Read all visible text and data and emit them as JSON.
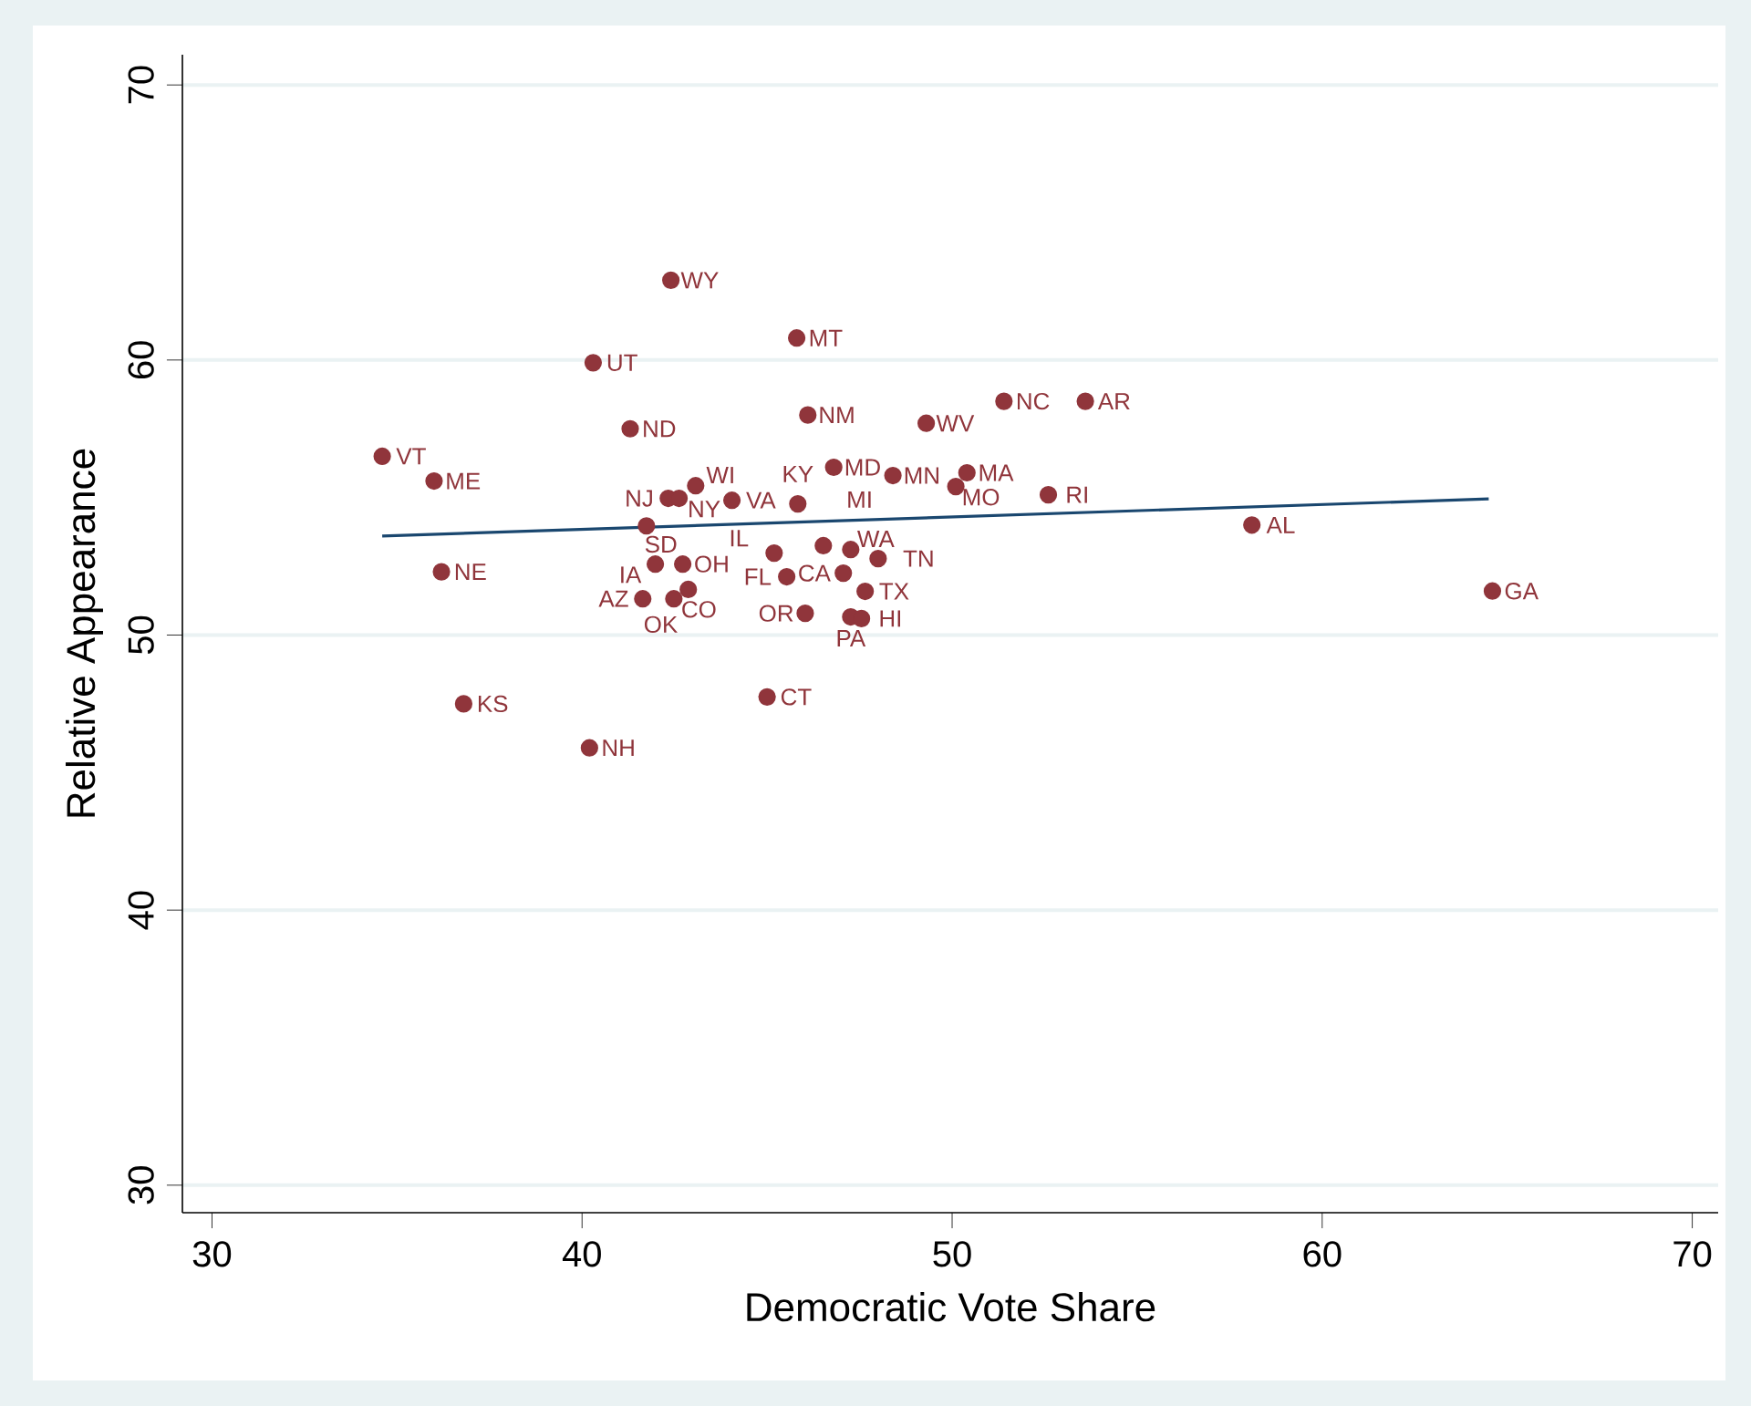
{
  "chart_data": {
    "type": "scatter",
    "xlabel": "Democratic Vote Share",
    "ylabel": "Relative Appearance",
    "xlim": [
      29.2,
      70.7
    ],
    "ylim": [
      29,
      71.1
    ],
    "xticks": [
      30,
      40,
      50,
      60,
      70
    ],
    "yticks": [
      30,
      40,
      50,
      60,
      70
    ],
    "grid": "y",
    "marker": "circle",
    "series": [
      {
        "type": "scatter",
        "color": "#90353b",
        "x": [
          34.6,
          36.0,
          36.2,
          36.8,
          40.2,
          40.3,
          41.3,
          42.4,
          45.8,
          46.1,
          49.3,
          51.4,
          53.6,
          46.8,
          48.4,
          50.4,
          50.1,
          52.6,
          58.1,
          64.6,
          42.33,
          42.62,
          43.07,
          44.05,
          45.83,
          41.74,
          41.98,
          42.72,
          41.64,
          42.48,
          42.87,
          45.19,
          45.53,
          46.52,
          47.26,
          47.06,
          48.0,
          47.65,
          46.03,
          47.26,
          47.55,
          45.0
        ],
        "values": [
          56.5,
          55.6,
          52.3,
          47.5,
          45.9,
          59.9,
          57.5,
          62.9,
          60.8,
          58.0,
          57.7,
          58.5,
          58.5,
          56.1,
          55.8,
          55.9,
          55.4,
          55.1,
          54.0,
          51.6,
          54.97,
          54.97,
          55.43,
          54.9,
          54.77,
          53.97,
          52.58,
          52.58,
          51.32,
          51.32,
          51.66,
          52.98,
          52.12,
          53.25,
          53.11,
          52.25,
          52.78,
          51.59,
          50.79,
          50.66,
          50.6,
          47.75
        ],
        "value_labels": [
          "VT",
          "ME",
          "NE",
          "KS",
          "NH",
          "UT",
          "ND",
          "WY",
          "MT",
          "NM",
          "WV",
          "NC",
          "AR",
          "MD",
          "MN",
          "MA",
          "MO",
          "RI",
          "AL",
          "GA",
          "NJ",
          "NY",
          "WI",
          "VA",
          "KY",
          "SD",
          "IA",
          "OH",
          "AZ",
          "CO",
          "OK",
          "IL",
          "FL",
          "MI",
          "WA",
          "CA",
          "TN",
          "TX",
          "OR",
          "PA",
          "HI",
          "CT"
        ]
      },
      {
        "type": "line",
        "marker": "none",
        "color": "#1a476f",
        "x": [
          34.6,
          64.5
        ],
        "values": [
          53.6,
          54.95
        ]
      }
    ]
  }
}
